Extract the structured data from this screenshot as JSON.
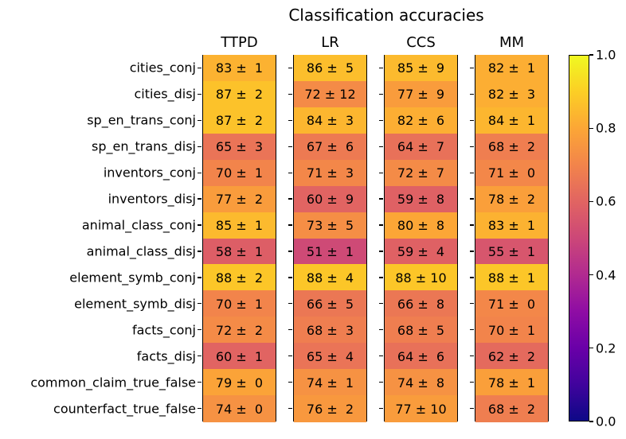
{
  "title": "Classification accuracies",
  "chart_data": {
    "type": "heatmap",
    "title": "Classification accuracies",
    "columns": [
      "TTPD",
      "LR",
      "CCS",
      "MM"
    ],
    "rows": [
      "cities_conj",
      "cities_disj",
      "sp_en_trans_conj",
      "sp_en_trans_disj",
      "inventors_conj",
      "inventors_disj",
      "animal_class_conj",
      "animal_class_disj",
      "element_symb_conj",
      "element_symb_disj",
      "facts_conj",
      "facts_disj",
      "common_claim_true_false",
      "counterfact_true_false"
    ],
    "series": [
      {
        "name": "TTPD",
        "values": [
          83,
          87,
          87,
          65,
          70,
          77,
          85,
          58,
          88,
          70,
          72,
          60,
          79,
          74
        ],
        "errors": [
          1,
          2,
          2,
          3,
          1,
          2,
          1,
          1,
          2,
          1,
          2,
          1,
          0,
          0
        ]
      },
      {
        "name": "LR",
        "values": [
          86,
          72,
          84,
          67,
          71,
          60,
          73,
          51,
          88,
          66,
          68,
          65,
          74,
          76
        ],
        "errors": [
          5,
          12,
          3,
          6,
          3,
          9,
          5,
          1,
          4,
          5,
          3,
          4,
          1,
          2
        ]
      },
      {
        "name": "CCS",
        "values": [
          85,
          77,
          82,
          64,
          72,
          59,
          80,
          59,
          88,
          66,
          68,
          64,
          74,
          77
        ],
        "errors": [
          9,
          9,
          6,
          7,
          7,
          8,
          8,
          4,
          10,
          8,
          5,
          6,
          8,
          10
        ]
      },
      {
        "name": "MM",
        "values": [
          82,
          82,
          84,
          68,
          71,
          78,
          83,
          55,
          88,
          71,
          70,
          62,
          78,
          68
        ],
        "errors": [
          1,
          3,
          1,
          2,
          0,
          2,
          1,
          1,
          1,
          0,
          1,
          2,
          1,
          2
        ]
      }
    ],
    "cell_label_template": "{value} ± {error}",
    "values_are_percent_of": 100,
    "colorbar": {
      "min": 0.0,
      "max": 1.0,
      "ticks": [
        0.0,
        0.2,
        0.4,
        0.6,
        0.8,
        1.0
      ],
      "tick_labels": [
        "0.0",
        "0.2",
        "0.4",
        "0.6",
        "0.8",
        "1.0"
      ]
    },
    "colormap": {
      "name": "plasma",
      "anchors": [
        "#0d0887",
        "#41039d",
        "#6a00a8",
        "#8f0da4",
        "#b12a90",
        "#cc4778",
        "#e16462",
        "#f2844b",
        "#fca636",
        "#fcce25",
        "#f0f921"
      ]
    },
    "legend_position": "right-colorbar",
    "grid": false
  }
}
